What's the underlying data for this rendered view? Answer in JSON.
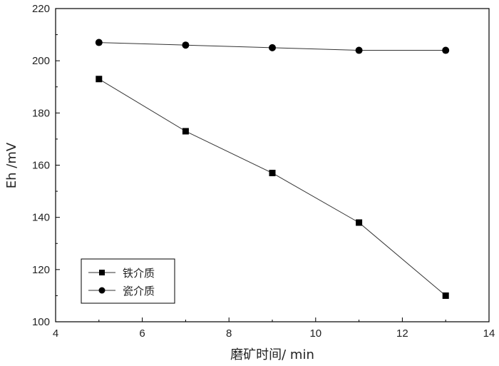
{
  "chart_data": {
    "type": "line",
    "title": "",
    "xlabel": "磨矿时间/ min",
    "ylabel": "Eh /mV",
    "xlim": [
      4,
      14
    ],
    "ylim": [
      100,
      220
    ],
    "x_ticks": [
      4,
      6,
      8,
      10,
      12,
      14
    ],
    "y_ticks": [
      100,
      120,
      140,
      160,
      180,
      200,
      220
    ],
    "grid": false,
    "legend_position": "bottom-left",
    "x": [
      5,
      7,
      9,
      11,
      13
    ],
    "series": [
      {
        "name": "铁介质",
        "marker": "square",
        "values": [
          193,
          173,
          157,
          138,
          110
        ]
      },
      {
        "name": "瓷介质",
        "marker": "circle",
        "values": [
          207,
          206,
          205,
          204,
          204
        ]
      }
    ]
  },
  "colors": {
    "line": "#333333",
    "marker": "#000000",
    "axis": "#000000"
  }
}
